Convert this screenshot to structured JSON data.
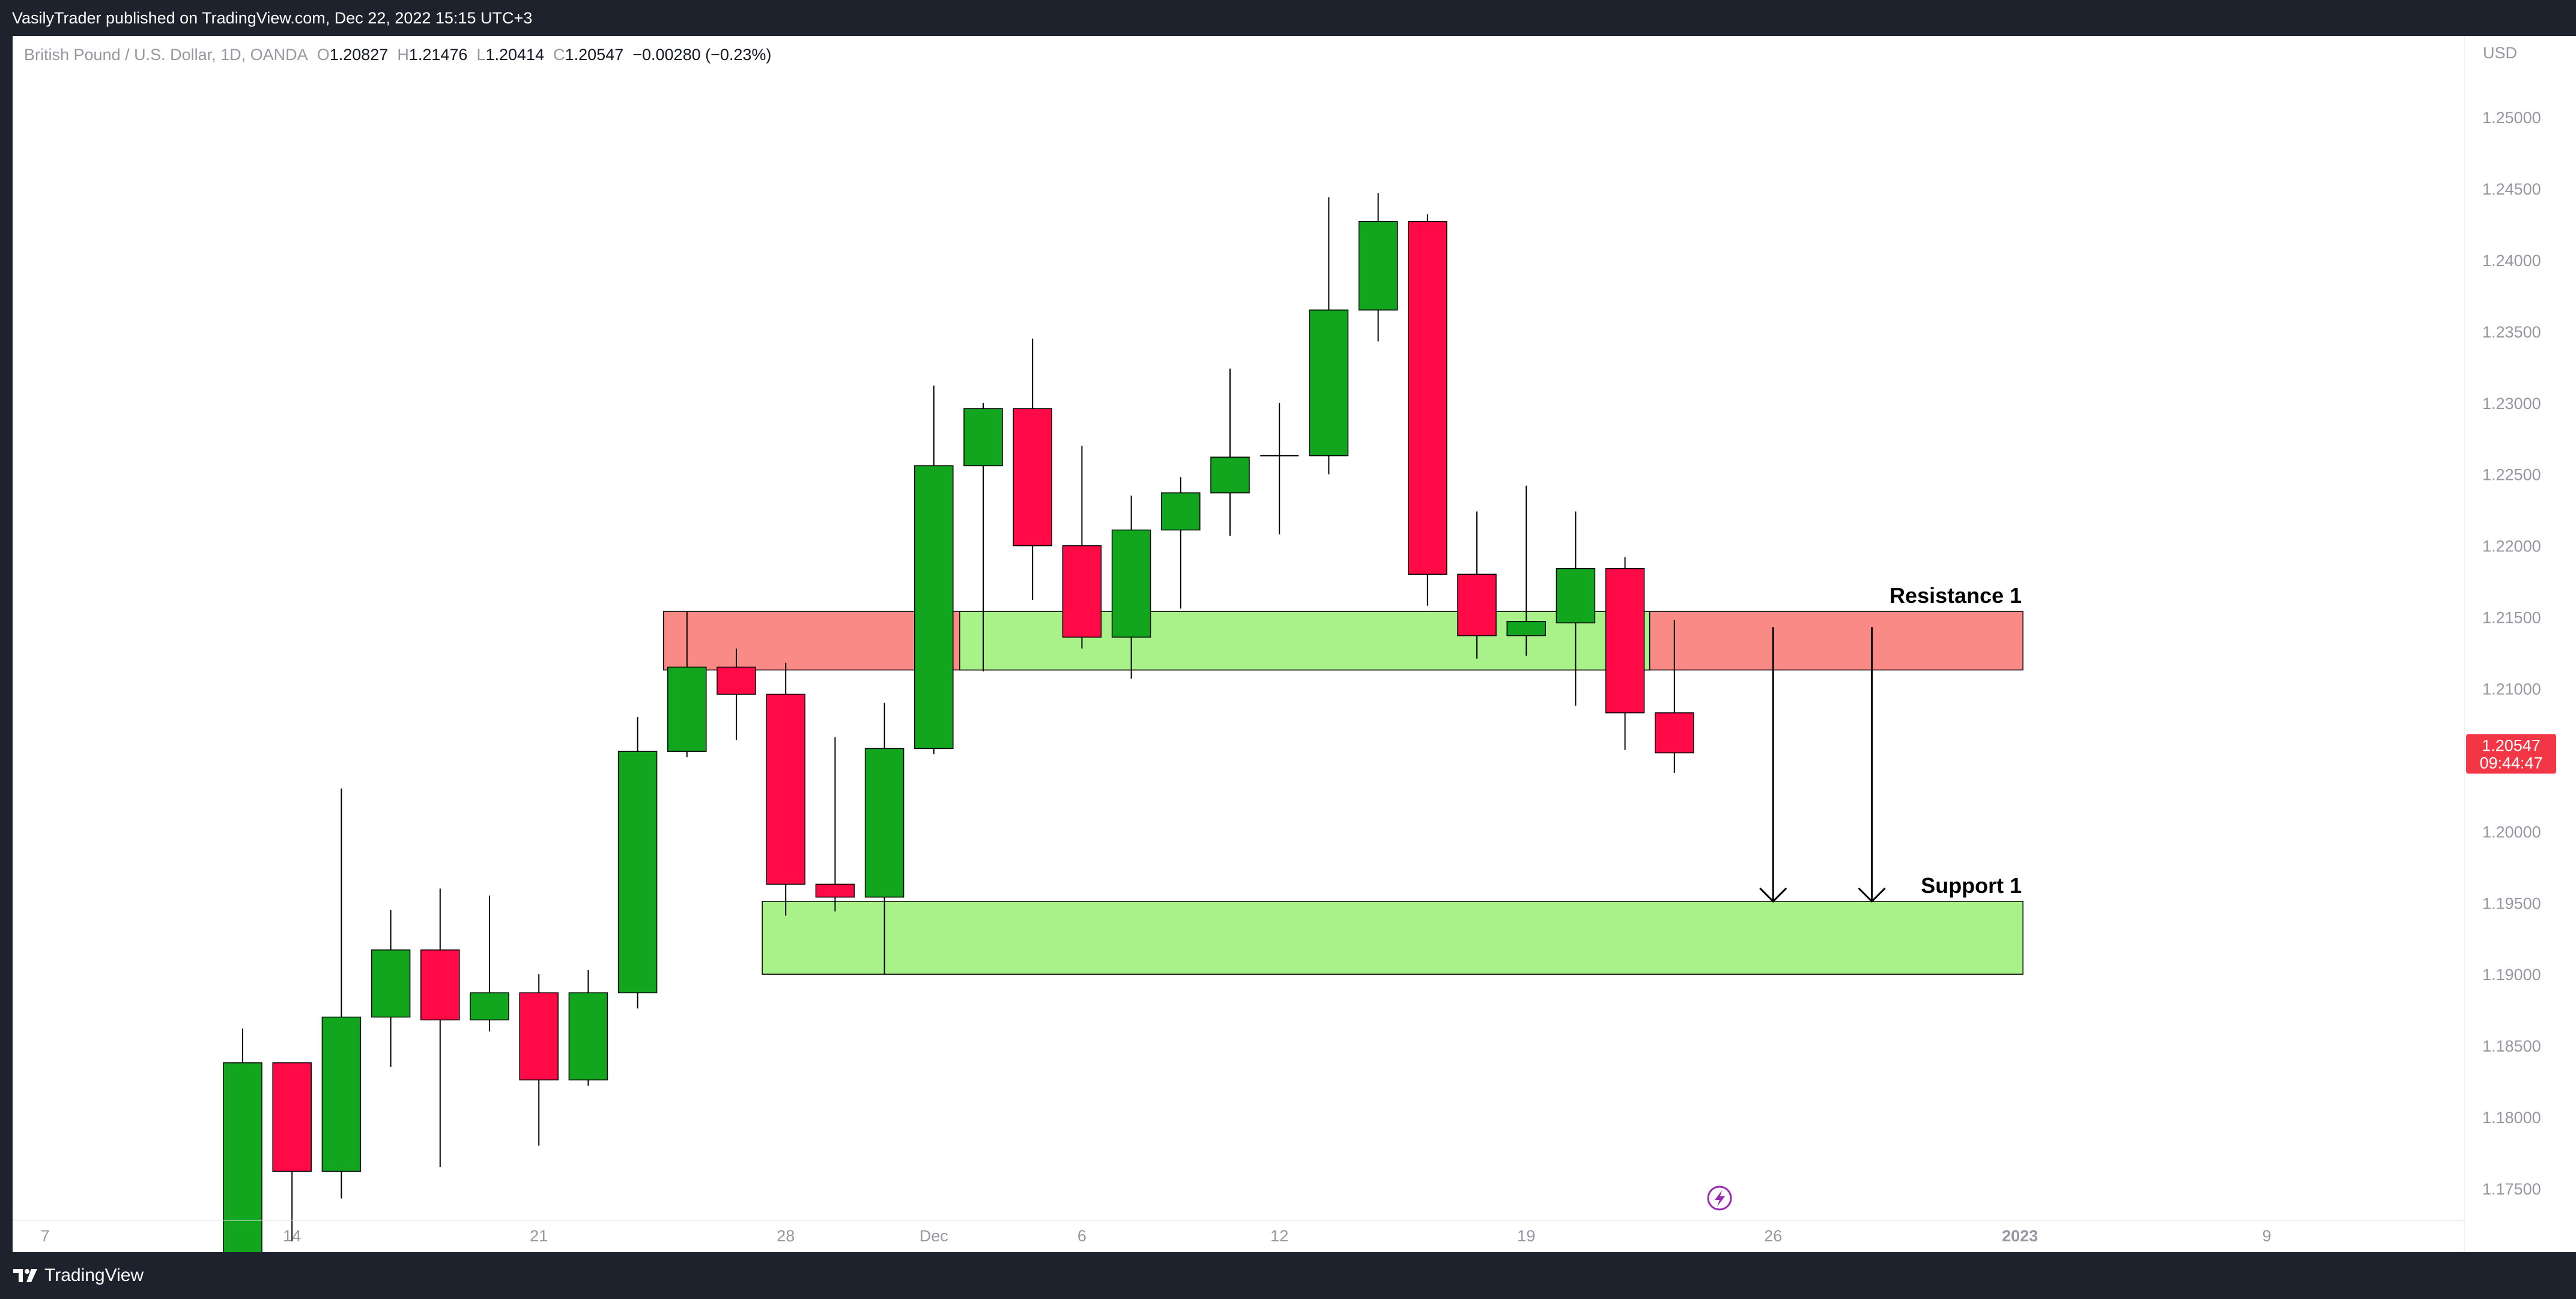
{
  "header": {
    "publish_line": "VasilyTrader published on TradingView.com, Dec 22, 2022 15:15 UTC+3"
  },
  "legend": {
    "symbol": "British Pound / U.S. Dollar, 1D, OANDA",
    "o_label": "O",
    "o_value": "1.20827",
    "h_label": "H",
    "h_value": "1.21476",
    "l_label": "L",
    "l_value": "1.20414",
    "c_label": "C",
    "c_value": "1.20547",
    "change": "−0.00280 (−0.23%)"
  },
  "currency": "USD",
  "price_tag": {
    "price": "1.20547",
    "countdown": "09:44:47",
    "color": "#f23645"
  },
  "footer": {
    "brand": "TradingView"
  },
  "colors": {
    "up": "#12a61e",
    "down": "#ff0a47",
    "resistance_fill": "#fa8a85",
    "support_fill": "#a9f28a",
    "flipped_fill": "#a9f28a"
  },
  "chart_data": {
    "type": "candlestick",
    "symbol": "GBPUSD",
    "timeframe": "1D",
    "ylim": [
      1.1705,
      1.254
    ],
    "y_ticks": [
      "1.25000",
      "1.24500",
      "1.24000",
      "1.23500",
      "1.23000",
      "1.22500",
      "1.22000",
      "1.21500",
      "1.21000",
      "1.20500",
      "1.20000",
      "1.19500",
      "1.19000",
      "1.18500",
      "1.18000",
      "1.17500"
    ],
    "x_ticks": [
      {
        "label": "7",
        "day": -1,
        "bold": false
      },
      {
        "label": "14",
        "day": 4,
        "bold": false
      },
      {
        "label": "21",
        "day": 9,
        "bold": false
      },
      {
        "label": "28",
        "day": 14,
        "bold": false
      },
      {
        "label": "Dec",
        "day": 17,
        "bold": false
      },
      {
        "label": "6",
        "day": 20,
        "bold": false
      },
      {
        "label": "12",
        "day": 24,
        "bold": false
      },
      {
        "label": "19",
        "day": 29,
        "bold": false
      },
      {
        "label": "26",
        "day": 34,
        "bold": false
      },
      {
        "label": "2023",
        "day": 39,
        "bold": true
      },
      {
        "label": "9",
        "day": 44,
        "bold": false
      }
    ],
    "candles": [
      {
        "date": "2022-11-11",
        "day": 3,
        "o": 1.17,
        "h": 1.1862,
        "l": 1.169,
        "c": 1.1838
      },
      {
        "date": "2022-11-14",
        "day": 4,
        "o": 1.1838,
        "h": 1.1838,
        "l": 1.1713,
        "c": 1.1762
      },
      {
        "date": "2022-11-15",
        "day": 5,
        "o": 1.1762,
        "h": 1.203,
        "l": 1.1743,
        "c": 1.187
      },
      {
        "date": "2022-11-16",
        "day": 6,
        "o": 1.187,
        "h": 1.1945,
        "l": 1.1835,
        "c": 1.1917
      },
      {
        "date": "2022-11-17",
        "day": 7,
        "o": 1.1917,
        "h": 1.196,
        "l": 1.1765,
        "c": 1.1868
      },
      {
        "date": "2022-11-18",
        "day": 8,
        "o": 1.1868,
        "h": 1.1955,
        "l": 1.186,
        "c": 1.1887
      },
      {
        "date": "2022-11-21",
        "day": 9,
        "o": 1.1887,
        "h": 1.19,
        "l": 1.178,
        "c": 1.1826
      },
      {
        "date": "2022-11-22",
        "day": 10,
        "o": 1.1826,
        "h": 1.1903,
        "l": 1.1822,
        "c": 1.1887
      },
      {
        "date": "2022-11-23",
        "day": 11,
        "o": 1.1887,
        "h": 1.208,
        "l": 1.1876,
        "c": 1.2056
      },
      {
        "date": "2022-11-24",
        "day": 12,
        "o": 1.2056,
        "h": 1.2154,
        "l": 1.2052,
        "c": 1.2115
      },
      {
        "date": "2022-11-25",
        "day": 13,
        "o": 1.2115,
        "h": 1.2128,
        "l": 1.2064,
        "c": 1.2096
      },
      {
        "date": "2022-11-28",
        "day": 14,
        "o": 1.2096,
        "h": 1.2118,
        "l": 1.1941,
        "c": 1.1963
      },
      {
        "date": "2022-11-29",
        "day": 15,
        "o": 1.1963,
        "h": 1.2066,
        "l": 1.1944,
        "c": 1.1954
      },
      {
        "date": "2022-11-30",
        "day": 16,
        "o": 1.1954,
        "h": 1.209,
        "l": 1.19,
        "c": 1.2058
      },
      {
        "date": "2022-12-01",
        "day": 17,
        "o": 1.2058,
        "h": 1.2312,
        "l": 1.2054,
        "c": 1.2256
      },
      {
        "date": "2022-12-02",
        "day": 18,
        "o": 1.2256,
        "h": 1.23,
        "l": 1.2112,
        "c": 1.2296
      },
      {
        "date": "2022-12-05",
        "day": 19,
        "o": 1.2296,
        "h": 1.2345,
        "l": 1.2162,
        "c": 1.22
      },
      {
        "date": "2022-12-06",
        "day": 20,
        "o": 1.22,
        "h": 1.227,
        "l": 1.2128,
        "c": 1.2136
      },
      {
        "date": "2022-12-07",
        "day": 21,
        "o": 1.2136,
        "h": 1.2235,
        "l": 1.2107,
        "c": 1.2211
      },
      {
        "date": "2022-12-08",
        "day": 22,
        "o": 1.2211,
        "h": 1.2248,
        "l": 1.2156,
        "c": 1.2237
      },
      {
        "date": "2022-12-09",
        "day": 23,
        "o": 1.2237,
        "h": 1.2324,
        "l": 1.2207,
        "c": 1.2262
      },
      {
        "date": "2022-12-12",
        "day": 24,
        "o": 1.2262,
        "h": 1.23,
        "l": 1.2208,
        "c": 1.2263
      },
      {
        "date": "2022-12-13",
        "day": 25,
        "o": 1.2263,
        "h": 1.2444,
        "l": 1.225,
        "c": 1.2365
      },
      {
        "date": "2022-12-14",
        "day": 26,
        "o": 1.2365,
        "h": 1.2447,
        "l": 1.2343,
        "c": 1.2427
      },
      {
        "date": "2022-12-15",
        "day": 27,
        "o": 1.2427,
        "h": 1.2432,
        "l": 1.2158,
        "c": 1.218
      },
      {
        "date": "2022-12-16",
        "day": 28,
        "o": 1.218,
        "h": 1.2224,
        "l": 1.2121,
        "c": 1.2137
      },
      {
        "date": "2022-12-19",
        "day": 29,
        "o": 1.2137,
        "h": 1.2242,
        "l": 1.2123,
        "c": 1.2147
      },
      {
        "date": "2022-12-20",
        "day": 30,
        "o": 1.2146,
        "h": 1.2224,
        "l": 1.2088,
        "c": 1.2184
      },
      {
        "date": "2022-12-21",
        "day": 31,
        "o": 1.2184,
        "h": 1.2192,
        "l": 1.2057,
        "c": 1.2083
      },
      {
        "date": "2022-12-22",
        "day": 32,
        "o": 1.2083,
        "h": 1.2148,
        "l": 1.2041,
        "c": 1.2055
      }
    ],
    "zones": [
      {
        "name": "Resistance 1",
        "label": "Resistance 1",
        "start_day": 12,
        "end_day": 39,
        "low": 1.2113,
        "high": 1.2154,
        "flip_start_day": 18,
        "flip_end_day": 31
      },
      {
        "name": "Support 1",
        "label": "Support 1",
        "start_day": 14,
        "end_day": 39,
        "low": 1.19,
        "high": 1.1951
      }
    ],
    "arrows": [
      {
        "day": 34,
        "from": 1.2143,
        "to": 1.1951
      },
      {
        "day": 36,
        "from": 1.2143,
        "to": 1.1951
      }
    ],
    "current_price": 1.20547
  }
}
